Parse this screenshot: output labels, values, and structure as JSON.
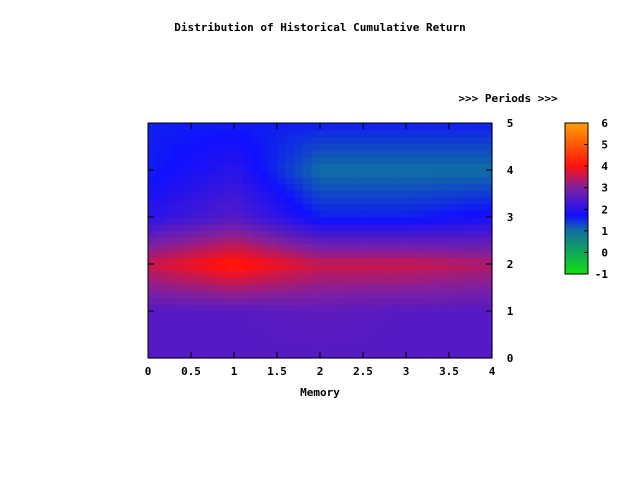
{
  "chart_data": {
    "type": "heatmap",
    "title": "Distribution of Historical Cumulative Return",
    "xlabel": "Memory",
    "x2label": ">>> Periods >>>",
    "xlim": [
      0,
      4
    ],
    "ylim": [
      0,
      5
    ],
    "x_ticks": [
      "0",
      "0.5",
      "1",
      "1.5",
      "2",
      "2.5",
      "3",
      "3.5",
      "4"
    ],
    "y_ticks": [
      "0",
      "1",
      "2",
      "3",
      "4",
      "5"
    ],
    "x": [
      0,
      1,
      2,
      3,
      4
    ],
    "y": [
      0,
      1,
      2,
      3,
      4,
      5
    ],
    "z": [
      [
        2.5,
        2.5,
        2.5,
        2.5,
        2.5
      ],
      [
        2.5,
        2.5,
        2.6,
        2.5,
        2.5
      ],
      [
        3.6,
        4.2,
        3.6,
        3.6,
        3.4
      ],
      [
        2.0,
        2.5,
        1.6,
        1.6,
        1.8
      ],
      [
        1.6,
        2.0,
        1.0,
        1.0,
        1.0
      ],
      [
        1.6,
        1.6,
        1.6,
        1.6,
        1.6
      ]
    ],
    "colorbar": {
      "range": [
        -1,
        6
      ],
      "ticks": [
        "-1",
        "0",
        "1",
        "2",
        "3",
        "4",
        "5",
        "6"
      ],
      "stops": [
        {
          "v": -1,
          "color": "#10e010"
        },
        {
          "v": 1,
          "color": "#1070a0"
        },
        {
          "v": 1.7,
          "color": "#1010ff"
        },
        {
          "v": 3,
          "color": "#8020a0"
        },
        {
          "v": 4,
          "color": "#ff1010"
        },
        {
          "v": 6,
          "color": "#ffa000"
        }
      ]
    }
  }
}
